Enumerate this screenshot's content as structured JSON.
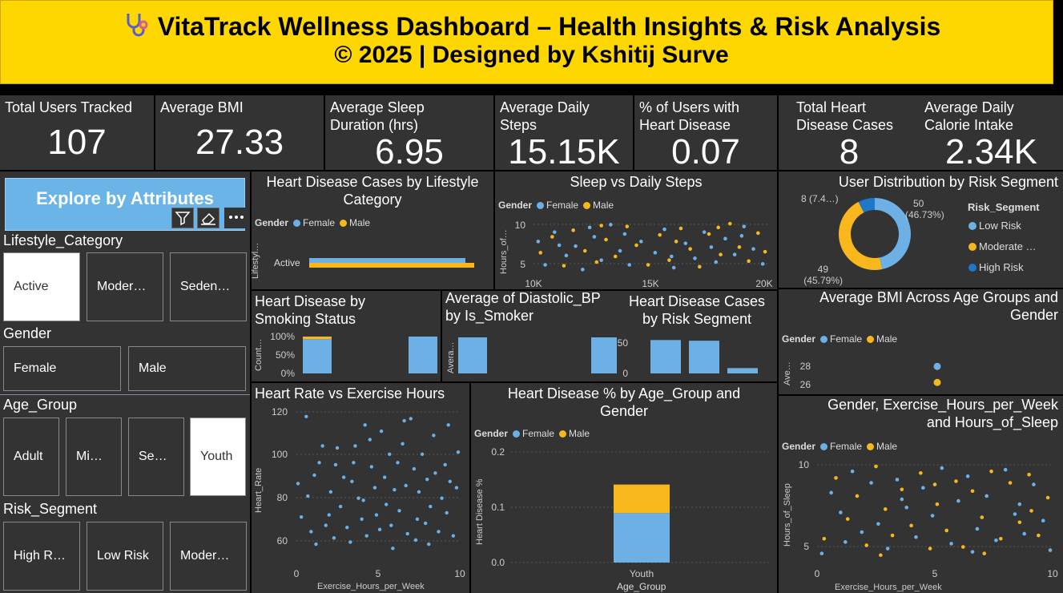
{
  "header": {
    "title": "VitaTrack Wellness Dashboard – Health Insights & Risk Analysis",
    "subtitle": "© 2025 | Designed by Kshitij Surve",
    "icon": "stethoscope-icon"
  },
  "kpis": [
    {
      "label": "Total Users Tracked",
      "value": "107"
    },
    {
      "label": "Average BMI",
      "value": "27.33"
    },
    {
      "label": "Average Sleep Duration (hrs)",
      "value": "6.95"
    },
    {
      "label": "Average Daily Steps",
      "value": "15.15K"
    },
    {
      "label": "% of Users with Heart Disease",
      "value": "0.07"
    },
    {
      "label": "Total Heart Disease Cases",
      "value": "8"
    },
    {
      "label": "Average Daily Calorie Intake",
      "value": "2.34K"
    }
  ],
  "explore": {
    "title": "Explore by Attributes",
    "icons": [
      "filter-icon",
      "eraser-icon",
      "more-options-icon"
    ]
  },
  "slicers": {
    "lifestyle": {
      "title": "Lifestyle_Category",
      "items": [
        "Active",
        "Moder…",
        "Seden…"
      ],
      "selected": 0
    },
    "gender": {
      "title": "Gender",
      "items": [
        "Female",
        "Male"
      ]
    },
    "age": {
      "title": "Age_Group",
      "items": [
        "Adult",
        "Mi…",
        "Se…",
        "Youth"
      ],
      "selected": 3
    },
    "risk": {
      "title": "Risk_Segment",
      "items": [
        "High R…",
        "Low Risk",
        "Moder…"
      ]
    }
  },
  "legend_common": {
    "label": "Gender",
    "female": "Female",
    "male": "Male"
  },
  "colors": {
    "female": "#6cb0e6",
    "male": "#f7b71d",
    "high": "#1f77c9",
    "bg": "#333333",
    "header": "#ffd700"
  },
  "chart_data": [
    {
      "id": "lifestyle",
      "type": "bar",
      "title": "Heart Disease Cases by Lifestyle Category",
      "legend_title": "Gender",
      "categories": [
        "Active"
      ],
      "series": [
        {
          "name": "Female",
          "values": [
            0.95
          ]
        },
        {
          "name": "Male",
          "values": [
            1.0
          ]
        }
      ],
      "ylabel": "Lifestyl…"
    },
    {
      "id": "sleep_steps",
      "type": "scatter",
      "title": "Sleep vs Daily Steps",
      "legend_title": "Gender",
      "xticks": [
        "10K",
        "15K",
        "20K"
      ],
      "yticks": [
        "5",
        "10"
      ],
      "xlim": [
        10000,
        20000
      ],
      "ylim": [
        4,
        10
      ],
      "ylabel": "Hours_of…",
      "series": [
        {
          "name": "Female",
          "points": [
            [
              10200,
              8
            ],
            [
              10500,
              5.5
            ],
            [
              10900,
              9
            ],
            [
              11400,
              6.5
            ],
            [
              11800,
              7.5
            ],
            [
              12100,
              5
            ],
            [
              12600,
              8.5
            ],
            [
              12900,
              6
            ],
            [
              13300,
              9.8
            ],
            [
              13700,
              7
            ],
            [
              14100,
              5.5
            ],
            [
              14600,
              8
            ],
            [
              15200,
              6.8
            ],
            [
              15600,
              9.3
            ],
            [
              16000,
              5.2
            ],
            [
              16500,
              7.8
            ],
            [
              16900,
              6.2
            ],
            [
              17300,
              9
            ],
            [
              17800,
              5.8
            ],
            [
              18200,
              8.3
            ],
            [
              18600,
              6.6
            ],
            [
              19000,
              9.6
            ],
            [
              19400,
              7.2
            ],
            [
              19800,
              5.6
            ],
            [
              11100,
              7.6
            ],
            [
              13900,
              8.8
            ],
            [
              15900,
              6.4
            ],
            [
              17600,
              7.4
            ],
            [
              18900,
              8.6
            ],
            [
              12400,
              9.5
            ]
          ]
        },
        {
          "name": "Male",
          "points": [
            [
              10300,
              6.8
            ],
            [
              10800,
              8.5
            ],
            [
              11300,
              5.4
            ],
            [
              11700,
              9.2
            ],
            [
              12200,
              7
            ],
            [
              12700,
              5.8
            ],
            [
              13100,
              8.2
            ],
            [
              13500,
              6.4
            ],
            [
              14000,
              9.6
            ],
            [
              14400,
              7.6
            ],
            [
              14900,
              5.5
            ],
            [
              15400,
              8.7
            ],
            [
              15800,
              6
            ],
            [
              16300,
              9.4
            ],
            [
              16700,
              7.2
            ],
            [
              17100,
              5.3
            ],
            [
              17500,
              8.8
            ],
            [
              18000,
              6.6
            ],
            [
              18400,
              9.9
            ],
            [
              18800,
              7.4
            ],
            [
              19200,
              5.9
            ],
            [
              19600,
              8.9
            ],
            [
              19900,
              6.9
            ],
            [
              12900,
              9.7
            ],
            [
              16100,
              8
            ],
            [
              17900,
              9.5
            ]
          ]
        }
      ]
    },
    {
      "id": "risk_donut",
      "type": "pie",
      "title": "User Distribution by Risk Segment",
      "legend_title": "Risk_Segment",
      "series": [
        {
          "name": "Low Risk",
          "legend_label": "Low Risk",
          "value": 50,
          "label": "50",
          "pct": "(46.73%)"
        },
        {
          "name": "Moderate …",
          "legend_label": "Moderate …",
          "value": 49,
          "label": "49",
          "pct": "(45.79%)"
        },
        {
          "name": "High Risk",
          "legend_label": "High Risk",
          "value": 8,
          "label": "8 (7.4…)"
        }
      ]
    },
    {
      "id": "smoking",
      "type": "bar",
      "title": "Heart Disease by Smoking Status",
      "ylabel": "Count…",
      "yticks": [
        "0%",
        "50%",
        "100%"
      ],
      "bars": [
        {
          "female": 0.93,
          "male": 0.07
        },
        {
          "female": 1.0,
          "male": 0.0
        }
      ]
    },
    {
      "id": "diastolic",
      "type": "bar",
      "title": "Average of Diastolic_BP by Is_Smoker",
      "ylabel": "Avera…",
      "values": [
        80,
        80
      ]
    },
    {
      "id": "risk_cases",
      "type": "bar",
      "title": "Heart Disease Cases by Risk Segment",
      "yticks": [
        "0",
        "50"
      ],
      "ylim": [
        0,
        60
      ],
      "values": [
        50,
        49,
        8
      ]
    },
    {
      "id": "bmi_age",
      "type": "scatter",
      "title": "Average BMI Across Age Groups and Gender",
      "legend_title": "Gender",
      "ylabel": "Ave…",
      "yticks": [
        "26",
        "28"
      ],
      "ylim": [
        25.5,
        29.5
      ],
      "series": [
        {
          "name": "Female",
          "values": [
            28.2
          ]
        },
        {
          "name": "Male",
          "values": [
            26.6
          ]
        }
      ]
    },
    {
      "id": "hr_exercise",
      "type": "scatter",
      "title": "Heart Rate vs Exercise Hours",
      "xlabel": "Exercise_Hours_per_Week",
      "ylabel": "Heart_Rate",
      "xticks": [
        "0",
        "5",
        "10"
      ],
      "yticks": [
        "60",
        "80",
        "100",
        "120"
      ],
      "xlim": [
        0,
        10
      ],
      "ylim": [
        50,
        122
      ],
      "points": [
        [
          0.1,
          87
        ],
        [
          0.3,
          71
        ],
        [
          0.6,
          119
        ],
        [
          0.7,
          81
        ],
        [
          0.9,
          64
        ],
        [
          1.2,
          58
        ],
        [
          1.4,
          97
        ],
        [
          1.6,
          105
        ],
        [
          1.8,
          67
        ],
        [
          2.0,
          72
        ],
        [
          2.1,
          83
        ],
        [
          2.3,
          61
        ],
        [
          2.5,
          104
        ],
        [
          2.7,
          76
        ],
        [
          2.9,
          90
        ],
        [
          3.1,
          66
        ],
        [
          3.3,
          59
        ],
        [
          3.5,
          97
        ],
        [
          3.6,
          105
        ],
        [
          3.8,
          80
        ],
        [
          4.0,
          70
        ],
        [
          4.2,
          115
        ],
        [
          4.3,
          62
        ],
        [
          4.5,
          108
        ],
        [
          4.6,
          95
        ],
        [
          4.8,
          85
        ],
        [
          4.9,
          72
        ],
        [
          5.1,
          65
        ],
        [
          5.2,
          112
        ],
        [
          5.4,
          90
        ],
        [
          5.5,
          77
        ],
        [
          5.7,
          101
        ],
        [
          5.8,
          67
        ],
        [
          6.0,
          84
        ],
        [
          6.2,
          97
        ],
        [
          6.3,
          74
        ],
        [
          6.5,
          106
        ],
        [
          6.7,
          86
        ],
        [
          6.8,
          63
        ],
        [
          7.0,
          118
        ],
        [
          7.2,
          94
        ],
        [
          7.4,
          70
        ],
        [
          7.5,
          83
        ],
        [
          7.7,
          101
        ],
        [
          7.9,
          68
        ],
        [
          8.0,
          89
        ],
        [
          8.2,
          76
        ],
        [
          8.4,
          110
        ],
        [
          8.5,
          92
        ],
        [
          8.7,
          64
        ],
        [
          8.9,
          80
        ],
        [
          9.1,
          96
        ],
        [
          9.2,
          73
        ],
        [
          9.4,
          88
        ],
        [
          9.6,
          62
        ],
        [
          9.8,
          85
        ],
        [
          9.9,
          102
        ],
        [
          1.1,
          91
        ],
        [
          3.4,
          88
        ],
        [
          6.6,
          117
        ],
        [
          8.1,
          58
        ],
        [
          2.4,
          96
        ],
        [
          5.9,
          56
        ],
        [
          4.1,
          79
        ],
        [
          7.3,
          60
        ],
        [
          9.3,
          115
        ]
      ]
    },
    {
      "id": "hd_age",
      "type": "bar",
      "title": "Heart Disease % by Age_Group and Gender",
      "legend_title": "Gender",
      "xlabel": "Age_Group",
      "ylabel": "Heart Disease %",
      "categories": [
        "Youth"
      ],
      "yticks": [
        "0.0",
        "0.1",
        "0.2"
      ],
      "ylim": [
        0,
        0.22
      ],
      "series": [
        {
          "name": "Female",
          "values": [
            0.097
          ]
        },
        {
          "name": "Male",
          "values": [
            0.056
          ]
        }
      ]
    },
    {
      "id": "gender_ex_sleep",
      "type": "scatter",
      "title": "Gender, Exercise_Hours_per_Week and Hours_of_Sleep",
      "legend_title": "Gender",
      "xlabel": "Exercise_Hours_per_Week",
      "ylabel": "Hours_of_Sleep",
      "xticks": [
        "0",
        "5",
        "10"
      ],
      "yticks": [
        "5",
        "10"
      ],
      "xlim": [
        0,
        10
      ],
      "ylim": [
        4,
        10
      ],
      "series": [
        {
          "name": "Female",
          "points": [
            [
              0.2,
              4.6
            ],
            [
              0.6,
              8.3
            ],
            [
              1.0,
              7.1
            ],
            [
              1.5,
              9.6
            ],
            [
              1.9,
              5.9
            ],
            [
              2.3,
              8.9
            ],
            [
              2.6,
              6.4
            ],
            [
              3.0,
              4.9
            ],
            [
              3.4,
              9.1
            ],
            [
              3.8,
              7.4
            ],
            [
              4.2,
              5.6
            ],
            [
              4.5,
              8.6
            ],
            [
              4.9,
              6.9
            ],
            [
              5.3,
              9.8
            ],
            [
              5.7,
              5.2
            ],
            [
              6.0,
              7.8
            ],
            [
              6.4,
              9.3
            ],
            [
              6.8,
              6.1
            ],
            [
              7.2,
              8.1
            ],
            [
              7.6,
              5.4
            ],
            [
              8.0,
              9.7
            ],
            [
              8.4,
              7.0
            ],
            [
              8.8,
              5.8
            ],
            [
              9.2,
              8.8
            ],
            [
              9.6,
              6.6
            ],
            [
              9.9,
              4.8
            ],
            [
              1.2,
              5.3
            ],
            [
              3.6,
              7.9
            ],
            [
              6.6,
              4.7
            ],
            [
              8.6,
              7.6
            ]
          ]
        },
        {
          "name": "Male",
          "points": [
            [
              0.3,
              5.5
            ],
            [
              0.8,
              9.2
            ],
            [
              1.3,
              6.7
            ],
            [
              1.7,
              8.1
            ],
            [
              2.1,
              5.1
            ],
            [
              2.5,
              9.9
            ],
            [
              2.9,
              7.3
            ],
            [
              3.2,
              5.7
            ],
            [
              3.6,
              8.5
            ],
            [
              4.0,
              6.3
            ],
            [
              4.4,
              9.5
            ],
            [
              4.8,
              4.9
            ],
            [
              5.1,
              7.6
            ],
            [
              5.5,
              6.0
            ],
            [
              5.9,
              9.0
            ],
            [
              6.2,
              5.0
            ],
            [
              6.6,
              8.4
            ],
            [
              7.0,
              6.8
            ],
            [
              7.4,
              9.6
            ],
            [
              7.8,
              5.5
            ],
            [
              8.2,
              8.9
            ],
            [
              8.6,
              6.5
            ],
            [
              9.0,
              9.4
            ],
            [
              9.4,
              5.7
            ],
            [
              9.8,
              8.0
            ],
            [
              2.7,
              4.5
            ],
            [
              5.0,
              8.8
            ],
            [
              7.1,
              4.6
            ],
            [
              9.1,
              7.2
            ]
          ]
        }
      ]
    }
  ]
}
